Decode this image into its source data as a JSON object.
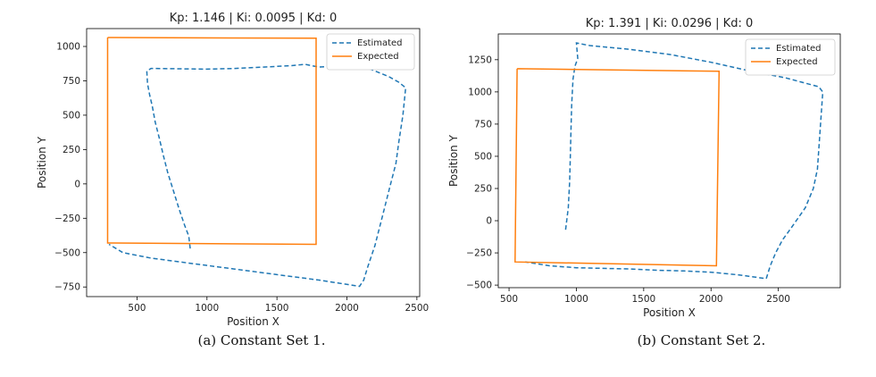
{
  "chart_data": [
    {
      "type": "line",
      "title": "Kp: 1.146   |   Ki: 0.0095   |   Kd: 0",
      "xlabel": "Position X",
      "ylabel": "Position Y",
      "xlim": [
        140,
        2520
      ],
      "ylim": [
        -820,
        1130
      ],
      "xticks": [
        500,
        1000,
        1500,
        2000,
        2500
      ],
      "yticks": [
        -750,
        -500,
        -250,
        0,
        250,
        500,
        750,
        1000
      ],
      "legend_position": "top-right",
      "caption": "(a) Constant Set 1.",
      "series": [
        {
          "name": "Estimated",
          "style": "dashed",
          "color": "#1f77b4",
          "x": [
            880,
            870,
            840,
            800,
            760,
            720,
            690,
            660,
            630,
            610,
            590,
            575,
            570,
            600,
            1000,
            1200,
            1400,
            1600,
            1700,
            1800,
            1900,
            2000,
            2100,
            2180,
            2300,
            2370,
            2420,
            2400,
            2370,
            2350,
            2300,
            2250,
            2200,
            2150,
            2120,
            2090,
            1800,
            1500,
            1200,
            900,
            600,
            400,
            300
          ],
          "y": [
            -470,
            -380,
            -300,
            -180,
            -50,
            80,
            200,
            330,
            450,
            560,
            650,
            730,
            820,
            840,
            835,
            840,
            850,
            860,
            870,
            850,
            855,
            858,
            860,
            830,
            780,
            740,
            700,
            500,
            300,
            150,
            -50,
            -250,
            -450,
            -600,
            -700,
            -745,
            -700,
            -660,
            -620,
            -580,
            -540,
            -500,
            -440
          ]
        },
        {
          "name": "Expected",
          "style": "solid",
          "color": "#ff7f0e",
          "x": [
            290,
            1780,
            1780,
            290,
            290
          ],
          "y": [
            1065,
            1060,
            -440,
            -430,
            1065
          ]
        }
      ]
    },
    {
      "type": "line",
      "title": "Kp: 1.391   |   Ki: 0.0296   |   Kd: 0",
      "xlabel": "Position X",
      "ylabel": "Position Y",
      "xlim": [
        420,
        2960
      ],
      "ylim": [
        -520,
        1450
      ],
      "xticks": [
        500,
        1000,
        1500,
        2000,
        2500
      ],
      "yticks": [
        -500,
        -250,
        0,
        250,
        500,
        750,
        1000,
        1250
      ],
      "legend_position": "top-right",
      "caption": "(b) Constant Set 2.",
      "series": [
        {
          "name": "Estimated",
          "style": "dashed",
          "color": "#1f77b4",
          "x": [
            920,
            940,
            950,
            955,
            960,
            965,
            975,
            990,
            1010,
            1000,
            1100,
            1400,
            1700,
            2000,
            2300,
            2550,
            2800,
            2830,
            2810,
            2790,
            2760,
            2700,
            2600,
            2530,
            2480,
            2440,
            2410,
            2200,
            2000,
            1800,
            1600,
            1400,
            1200,
            1000,
            800,
            620
          ],
          "y": [
            -70,
            100,
            300,
            500,
            700,
            900,
            1100,
            1200,
            1260,
            1380,
            1360,
            1330,
            1290,
            1230,
            1160,
            1110,
            1040,
            1000,
            700,
            400,
            250,
            100,
            -50,
            -150,
            -250,
            -350,
            -450,
            -420,
            -400,
            -390,
            -385,
            -375,
            -370,
            -365,
            -350,
            -320
          ]
        },
        {
          "name": "Expected",
          "style": "solid",
          "color": "#ff7f0e",
          "x": [
            560,
            2060,
            2040,
            545,
            560
          ],
          "y": [
            1180,
            1160,
            -350,
            -320,
            1180
          ]
        }
      ]
    }
  ]
}
